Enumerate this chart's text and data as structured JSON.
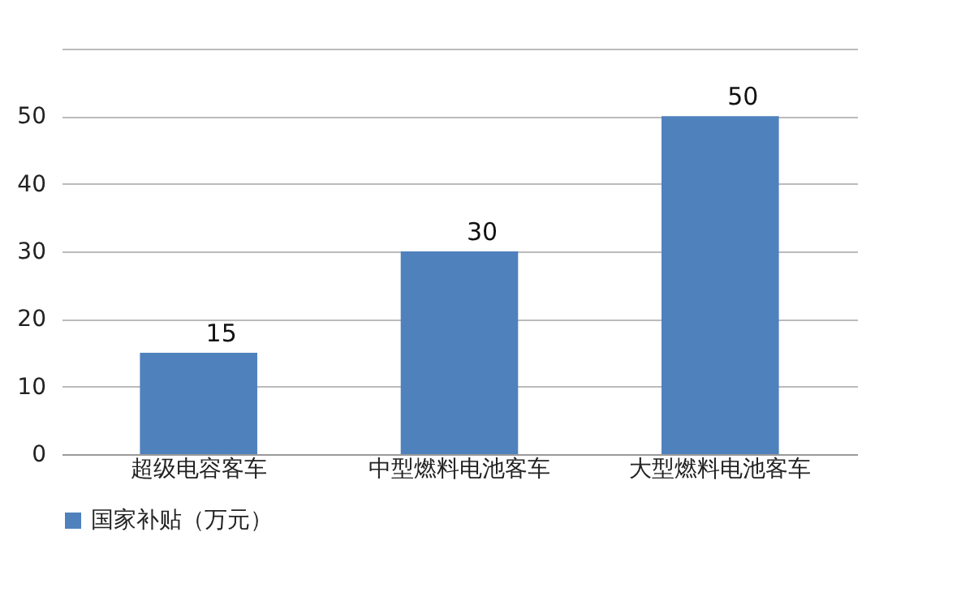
{
  "chart_data": {
    "type": "bar",
    "categories": [
      "超级电容客车",
      "中型燃料电池客车",
      "大型燃料电池客车"
    ],
    "series": [
      {
        "name": "国家补贴（万元）",
        "color": "#4f81bd",
        "values": [
          15,
          30,
          50
        ]
      }
    ],
    "ylim": [
      0,
      60
    ],
    "yticks": [
      0,
      10,
      20,
      30,
      40,
      50,
      {
        "value": 60,
        "label": null
      }
    ],
    "grid": "y",
    "legend": "bottom",
    "data_labels": true
  }
}
